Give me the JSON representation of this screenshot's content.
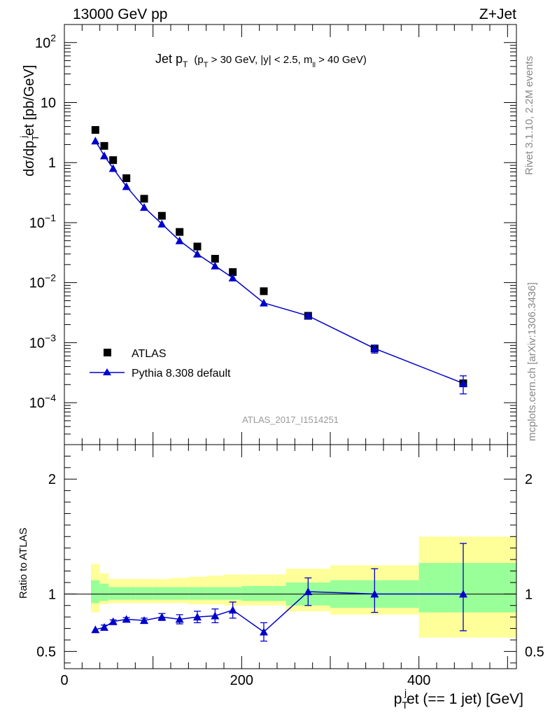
{
  "header": {
    "left": "13000 GeV pp",
    "right": "Z+Jet"
  },
  "side": {
    "rivet": "Rivet 3.1.10,  2.2M events",
    "mcplots": "mcplots.cern.ch [arXiv:1306.3436]"
  },
  "colors": {
    "atlas": "#000000",
    "mc": "#0000cc",
    "band_inner": "#99ff99",
    "band_outer": "#ffff99"
  },
  "chart_data": [
    {
      "type": "scatter",
      "title_main": "Jet p",
      "title_main_sub": "T",
      "title_cut_a": "(p",
      "title_cut_a_sub": "T",
      "title_cut_b": " > 30 GeV, |y| < 2.5, m",
      "title_cut_b_sub": "ll",
      "title_cut_c": " > 40 GeV)",
      "ylabel_a": "dσ/dp",
      "ylabel_a_sub": "T",
      "ylabel_a_sup": "j",
      "ylabel_b": "et [pb/GeV]",
      "yscale": "log",
      "ylim": [
        2e-05,
        200
      ],
      "xlim": [
        0,
        510
      ],
      "watermark": "ATLAS_2017_I1514251",
      "y_ticks": [
        {
          "v": 100,
          "base": "10",
          "exp": "2"
        },
        {
          "v": 10,
          "base": "10",
          "exp": ""
        },
        {
          "v": 1,
          "base": "1",
          "exp": ""
        },
        {
          "v": 0.1,
          "base": "10",
          "exp": "−1"
        },
        {
          "v": 0.01,
          "base": "10",
          "exp": "−2"
        },
        {
          "v": 0.001,
          "base": "10",
          "exp": "−3"
        },
        {
          "v": 0.0001,
          "base": "10",
          "exp": "−4"
        }
      ],
      "legend": {
        "position": "bottom-left",
        "atlas": "ATLAS",
        "mc": "Pythia 8.308 default"
      },
      "series": [
        {
          "name": "ATLAS",
          "x": [
            35,
            45,
            55,
            70,
            90,
            110,
            130,
            150,
            170,
            190,
            225,
            275,
            350,
            450
          ],
          "values": [
            3.5,
            1.9,
            1.1,
            0.55,
            0.25,
            0.13,
            0.07,
            0.04,
            0.025,
            0.015,
            0.0072,
            0.0028,
            0.0008,
            0.00021
          ]
        },
        {
          "name": "Pythia 8.308 default",
          "x": [
            35,
            45,
            55,
            70,
            90,
            110,
            130,
            150,
            170,
            190,
            225,
            275,
            350,
            450
          ],
          "values": [
            2.3,
            1.3,
            0.8,
            0.4,
            0.18,
            0.095,
            0.05,
            0.03,
            0.019,
            0.012,
            0.0046,
            0.0028,
            0.0008,
            0.00021
          ],
          "err_up": [
            0,
            0,
            0,
            0,
            0,
            0,
            0,
            0,
            0,
            0,
            0,
            0.0002,
            0.0001,
            7e-05
          ],
          "err_down": [
            0,
            0,
            0,
            0,
            0,
            0,
            0,
            0,
            0,
            0,
            0,
            0.0002,
            0.00013,
            7e-05
          ]
        }
      ]
    },
    {
      "type": "scatter",
      "ylabel": "Ratio to ATLAS",
      "xlabel_a": "p",
      "xlabel_a_sub": "T",
      "xlabel_a_sup": "j",
      "xlabel_b": "et (== 1 jet) [GeV]",
      "ylim": [
        0.35,
        2.3
      ],
      "xlim": [
        0,
        510
      ],
      "y_ticks": [
        {
          "v": 0.5,
          "label": "0.5"
        },
        {
          "v": 1,
          "label": "1"
        },
        {
          "v": 2,
          "label": "2"
        }
      ],
      "x_ticks": [
        {
          "v": 0,
          "label": "0"
        },
        {
          "v": 200,
          "label": "200"
        },
        {
          "v": 400,
          "label": "400"
        }
      ],
      "bands": [
        {
          "x0": 30,
          "x1": 40,
          "in_lo": 0.92,
          "in_hi": 1.12,
          "out_lo": 0.84,
          "out_hi": 1.26
        },
        {
          "x0": 40,
          "x1": 50,
          "in_lo": 0.94,
          "in_hi": 1.09,
          "out_lo": 0.91,
          "out_hi": 1.18
        },
        {
          "x0": 50,
          "x1": 60,
          "in_lo": 0.95,
          "in_hi": 1.06,
          "out_lo": 0.92,
          "out_hi": 1.13
        },
        {
          "x0": 60,
          "x1": 80,
          "in_lo": 0.95,
          "in_hi": 1.06,
          "out_lo": 0.92,
          "out_hi": 1.13
        },
        {
          "x0": 80,
          "x1": 100,
          "in_lo": 0.95,
          "in_hi": 1.06,
          "out_lo": 0.92,
          "out_hi": 1.13
        },
        {
          "x0": 100,
          "x1": 120,
          "in_lo": 0.95,
          "in_hi": 1.06,
          "out_lo": 0.92,
          "out_hi": 1.13
        },
        {
          "x0": 120,
          "x1": 140,
          "in_lo": 0.95,
          "in_hi": 1.06,
          "out_lo": 0.92,
          "out_hi": 1.14
        },
        {
          "x0": 140,
          "x1": 160,
          "in_lo": 0.95,
          "in_hi": 1.06,
          "out_lo": 0.91,
          "out_hi": 1.15
        },
        {
          "x0": 160,
          "x1": 180,
          "in_lo": 0.95,
          "in_hi": 1.06,
          "out_lo": 0.91,
          "out_hi": 1.16
        },
        {
          "x0": 180,
          "x1": 200,
          "in_lo": 0.95,
          "in_hi": 1.06,
          "out_lo": 0.9,
          "out_hi": 1.17
        },
        {
          "x0": 200,
          "x1": 250,
          "in_lo": 0.94,
          "in_hi": 1.07,
          "out_lo": 0.9,
          "out_hi": 1.17
        },
        {
          "x0": 250,
          "x1": 300,
          "in_lo": 0.9,
          "in_hi": 1.1,
          "out_lo": 0.85,
          "out_hi": 1.22
        },
        {
          "x0": 300,
          "x1": 400,
          "in_lo": 0.88,
          "in_hi": 1.12,
          "out_lo": 0.82,
          "out_hi": 1.25
        },
        {
          "x0": 400,
          "x1": 510,
          "in_lo": 0.84,
          "in_hi": 1.27,
          "out_lo": 0.62,
          "out_hi": 1.5
        }
      ],
      "series": [
        {
          "name": "Pythia 8.308 default",
          "x": [
            35,
            45,
            55,
            70,
            90,
            110,
            130,
            150,
            170,
            190,
            225,
            275,
            350,
            450
          ],
          "values": [
            0.69,
            0.71,
            0.76,
            0.78,
            0.77,
            0.8,
            0.78,
            0.8,
            0.81,
            0.86,
            0.67,
            1.02,
            1.0,
            1.0
          ],
          "err_up": [
            0,
            0.02,
            0.015,
            0.015,
            0.02,
            0.03,
            0.04,
            0.05,
            0.06,
            0.07,
            0.08,
            0.12,
            0.22,
            0.44
          ],
          "err_down": [
            0,
            0.02,
            0.015,
            0.015,
            0.02,
            0.03,
            0.04,
            0.05,
            0.06,
            0.07,
            0.08,
            0.12,
            0.16,
            0.32
          ]
        }
      ]
    }
  ]
}
